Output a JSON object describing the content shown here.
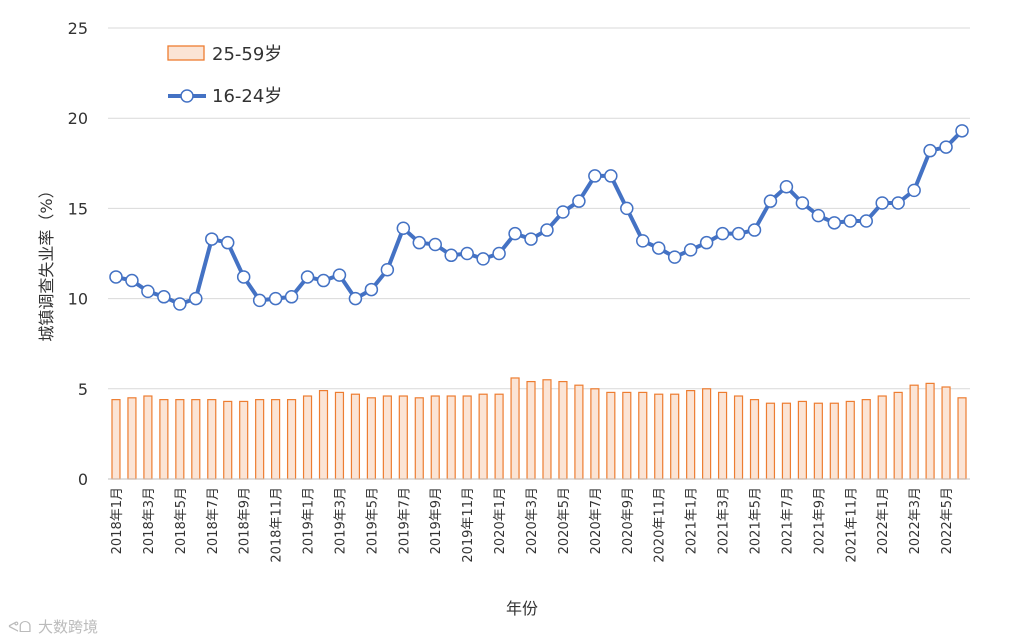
{
  "watermark": "大数跨境",
  "chart_data": {
    "type": "bar+line",
    "ylabel": "城镇调查失业率（%）",
    "xlabel": "年份",
    "ylim": [
      0,
      25
    ],
    "yticks": [
      0,
      5,
      10,
      15,
      20,
      25
    ],
    "grid": true,
    "legend_position": "top-left",
    "categories": [
      "2018年1月",
      "2018年2月",
      "2018年3月",
      "2018年4月",
      "2018年5月",
      "2018年6月",
      "2018年7月",
      "2018年8月",
      "2018年9月",
      "2018年10月",
      "2018年11月",
      "2018年12月",
      "2019年1月",
      "2019年2月",
      "2019年3月",
      "2019年4月",
      "2019年5月",
      "2019年6月",
      "2019年7月",
      "2019年8月",
      "2019年9月",
      "2019年10月",
      "2019年11月",
      "2019年12月",
      "2020年1月",
      "2020年2月",
      "2020年3月",
      "2020年4月",
      "2020年5月",
      "2020年6月",
      "2020年7月",
      "2020年8月",
      "2020年9月",
      "2020年10月",
      "2020年11月",
      "2020年12月",
      "2021年1月",
      "2021年2月",
      "2021年3月",
      "2021年4月",
      "2021年5月",
      "2021年6月",
      "2021年7月",
      "2021年8月",
      "2021年9月",
      "2021年10月",
      "2021年11月",
      "2021年12月",
      "2022年1月",
      "2022年2月",
      "2022年3月",
      "2022年4月",
      "2022年5月",
      "2022年6月"
    ],
    "x_tick_labels": [
      "2018年1月",
      "2018年3月",
      "2018年5月",
      "2018年7月",
      "2018年9月",
      "2018年11月",
      "2019年1月",
      "2019年3月",
      "2019年5月",
      "2019年7月",
      "2019年9月",
      "2019年11月",
      "2020年1月",
      "2020年3月",
      "2020年5月",
      "2020年7月",
      "2020年9月",
      "2020年11月",
      "2021年1月",
      "2021年3月",
      "2021年5月",
      "2021年7月",
      "2021年9月",
      "2021年11月",
      "2022年1月",
      "2022年3月",
      "2022年5月"
    ],
    "series": [
      {
        "name": "25-59岁",
        "type": "bar",
        "color": "#ed7d31",
        "fill": "#fbe4d5",
        "values": [
          4.4,
          4.5,
          4.6,
          4.4,
          4.4,
          4.4,
          4.4,
          4.3,
          4.3,
          4.4,
          4.4,
          4.4,
          4.6,
          4.9,
          4.8,
          4.7,
          4.5,
          4.6,
          4.6,
          4.5,
          4.6,
          4.6,
          4.6,
          4.7,
          4.7,
          5.6,
          5.4,
          5.5,
          5.4,
          5.2,
          5.0,
          4.8,
          4.8,
          4.8,
          4.7,
          4.7,
          4.9,
          5.0,
          4.8,
          4.6,
          4.4,
          4.2,
          4.2,
          4.3,
          4.2,
          4.2,
          4.3,
          4.4,
          4.6,
          4.8,
          5.2,
          5.3,
          5.1,
          4.5
        ]
      },
      {
        "name": "16-24岁",
        "type": "line",
        "color": "#4472c4",
        "marker_fill": "#ffffff",
        "values": [
          11.2,
          11.0,
          10.4,
          10.1,
          9.7,
          10.0,
          13.3,
          13.1,
          11.2,
          9.9,
          10.0,
          10.1,
          11.2,
          11.0,
          11.3,
          10.0,
          10.5,
          11.6,
          13.9,
          13.1,
          13.0,
          12.4,
          12.5,
          12.2,
          12.5,
          13.6,
          13.3,
          13.8,
          14.8,
          15.4,
          16.8,
          16.8,
          15.0,
          13.2,
          12.8,
          12.3,
          12.7,
          13.1,
          13.6,
          13.6,
          13.8,
          15.4,
          16.2,
          15.3,
          14.6,
          14.2,
          14.3,
          14.3,
          15.3,
          15.3,
          16.0,
          18.2,
          18.4,
          19.3
        ]
      }
    ]
  }
}
